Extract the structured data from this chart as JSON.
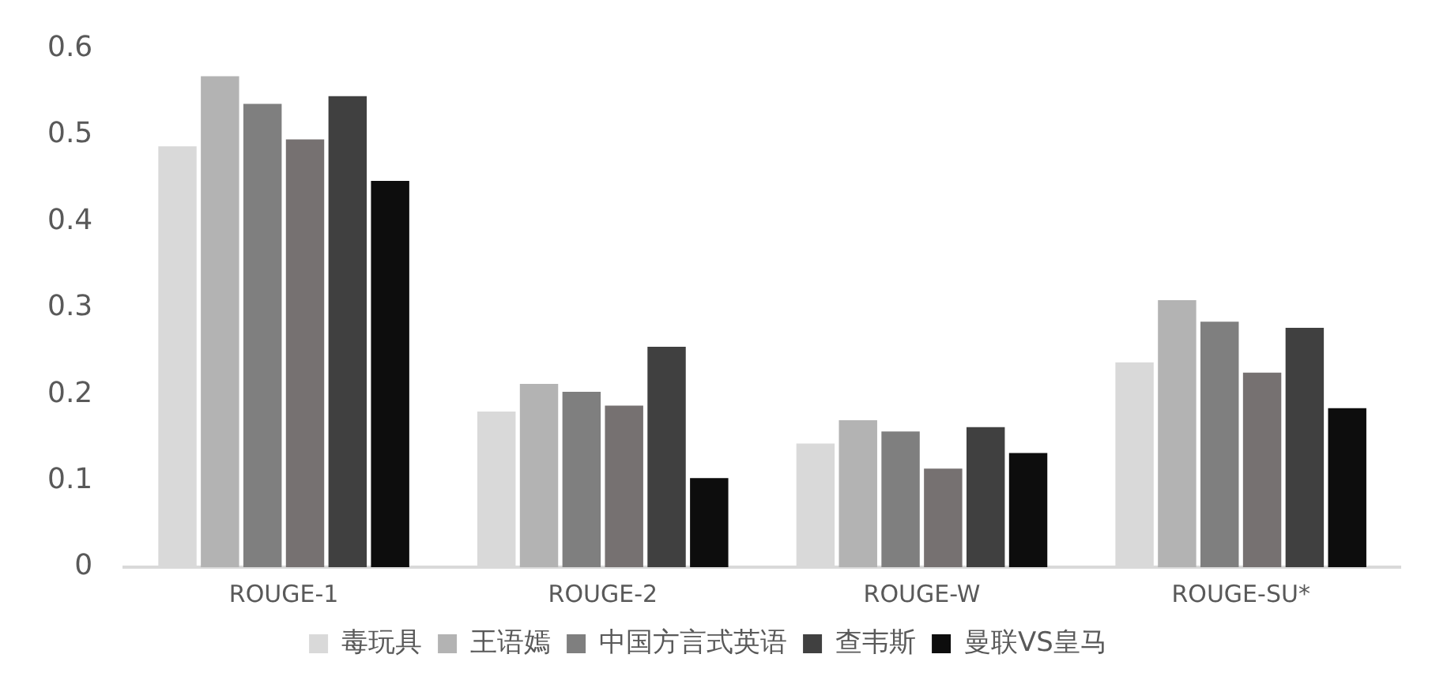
{
  "chart_data": {
    "type": "bar",
    "categories": [
      "ROUGE-1",
      "ROUGE-2",
      "ROUGE-W",
      "ROUGE-SU*"
    ],
    "series": [
      {
        "name": "毒玩具",
        "color": "#d9d9d9",
        "values": [
          0.487,
          0.18,
          0.143,
          0.237
        ]
      },
      {
        "name": "王语嫣",
        "color": "#b3b3b3",
        "values": [
          0.568,
          0.212,
          0.17,
          0.309
        ]
      },
      {
        "name": "中国方言式英语",
        "color": "#7f7f7f",
        "values": [
          0.536,
          0.203,
          0.157,
          0.284
        ]
      },
      {
        "color": "#767171",
        "values": [
          0.495,
          0.187,
          0.114,
          0.225
        ]
      },
      {
        "name": "查韦斯",
        "color": "#404040",
        "values": [
          0.545,
          0.255,
          0.162,
          0.277
        ]
      },
      {
        "name": "曼联VS皇马",
        "color": "#0d0d0d",
        "values": [
          0.447,
          0.103,
          0.132,
          0.184
        ]
      }
    ],
    "ylim": [
      0,
      0.6
    ],
    "yticks": [
      0,
      0.1,
      0.2,
      0.3,
      0.4,
      0.5,
      0.6
    ],
    "grid": false,
    "legend": "bottom"
  }
}
